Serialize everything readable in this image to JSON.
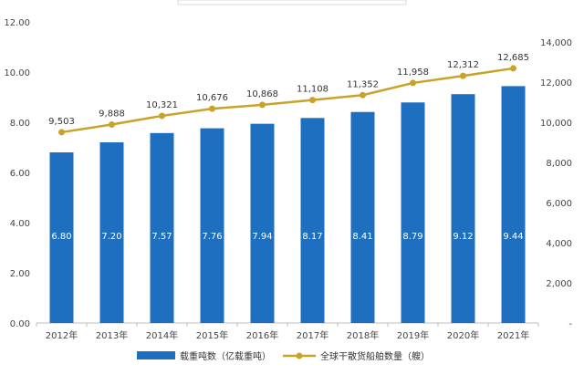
{
  "chart_data": {
    "type": "bar",
    "categories": [
      "2012年",
      "2013年",
      "2014年",
      "2015年",
      "2016年",
      "2017年",
      "2018年",
      "2019年",
      "2020年",
      "2021年"
    ],
    "series": [
      {
        "name": "载重吨数（亿载重吨）",
        "type": "bar",
        "axis": "left",
        "color": "#1f6fc0",
        "values": [
          6.8,
          7.2,
          7.57,
          7.76,
          7.94,
          8.17,
          8.41,
          8.79,
          9.12,
          9.44
        ],
        "labels": [
          "6.80",
          "7.20",
          "7.57",
          "7.76",
          "7.94",
          "8.17",
          "8.41",
          "8.79",
          "9.12",
          "9.44"
        ]
      },
      {
        "name": "全球干散货船舶数量（艘）",
        "type": "line",
        "axis": "right",
        "color": "#c9a227",
        "values": [
          9503,
          9888,
          10321,
          10676,
          10868,
          11108,
          11352,
          11958,
          12312,
          12685
        ],
        "labels": [
          "9,503",
          "9,888",
          "10,321",
          "10,676",
          "10,868",
          "11,108",
          "11,352",
          "11,958",
          "12,312",
          "12,685"
        ]
      }
    ],
    "y_left": {
      "range": [
        0,
        12
      ],
      "ticks": [
        0,
        2,
        4,
        6,
        8,
        10,
        12
      ],
      "tick_labels": [
        "0.00",
        "2.00",
        "4.00",
        "6.00",
        "8.00",
        "10.00",
        "12.00"
      ]
    },
    "y_right": {
      "range": [
        0,
        15000
      ],
      "ticks": [
        0,
        2000,
        4000,
        6000,
        8000,
        10000,
        12000,
        14000
      ],
      "tick_labels": [
        "-",
        "2,000",
        "4,000",
        "6,000",
        "8,000",
        "10,000",
        "12,000",
        "14,000"
      ]
    },
    "grid": false,
    "legend_position": "bottom"
  }
}
